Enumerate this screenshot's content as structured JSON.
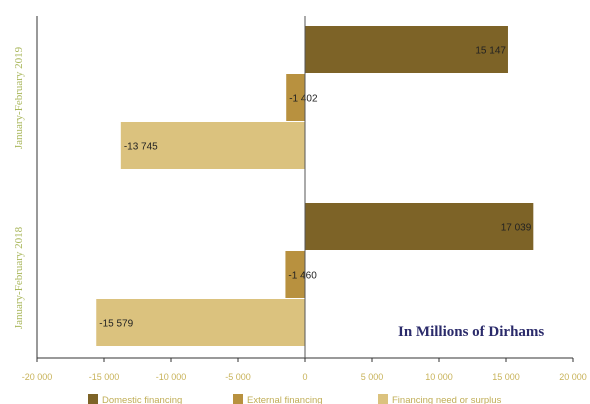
{
  "chart_data": {
    "type": "bar",
    "orientation": "horizontal",
    "categories": [
      "January-February 2019",
      "January-February 2018"
    ],
    "series": [
      {
        "name": "Domestic financing",
        "color": "#7d6327",
        "values": [
          15147,
          17039
        ],
        "labels": [
          "15 147",
          "17 039"
        ]
      },
      {
        "name": "External financing",
        "color": "#b8913f",
        "values": [
          -1402,
          -1460
        ],
        "labels": [
          "-1 402",
          "-1 460"
        ]
      },
      {
        "name": "Financing need or surplus",
        "color": "#dbc27e",
        "values": [
          -13745,
          -15579
        ],
        "labels": [
          "-13 745",
          "-15 579"
        ]
      }
    ],
    "xlim": [
      -20000,
      20000
    ],
    "xticks": [
      -20000,
      -15000,
      -10000,
      -5000,
      0,
      5000,
      10000,
      15000,
      20000
    ],
    "xtick_labels": [
      "-20 000",
      "-15 000",
      "-10 000",
      "-5 000",
      "0",
      "5 000",
      "10 000",
      "15 000",
      "20 000"
    ],
    "annotation": "In Millions of Dirhams",
    "legend_position": "bottom",
    "grid": false
  }
}
